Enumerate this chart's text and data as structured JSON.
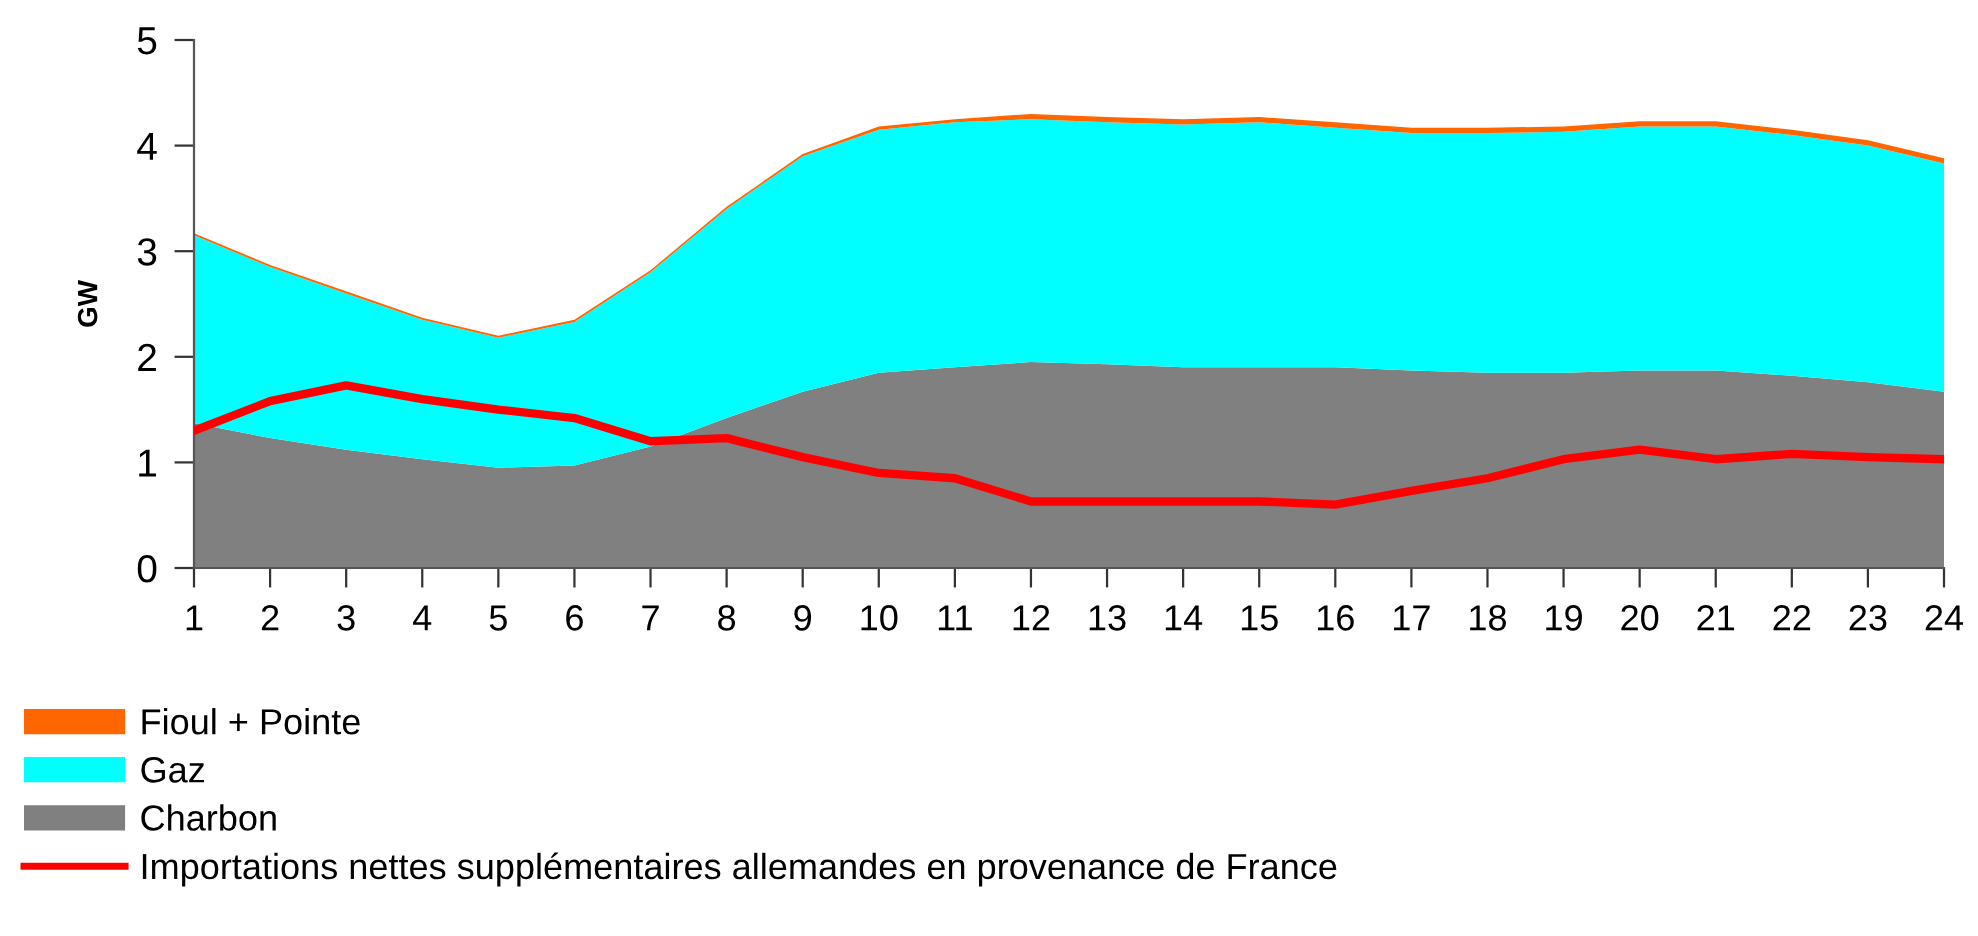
{
  "chart_data": {
    "type": "area",
    "ylabel": "GW",
    "stacked": true,
    "categories": [
      "1",
      "2",
      "3",
      "4",
      "5",
      "6",
      "7",
      "8",
      "9",
      "10",
      "11",
      "12",
      "13",
      "14",
      "15",
      "16",
      "17",
      "18",
      "19",
      "20",
      "21",
      "22",
      "23",
      "24"
    ],
    "series": [
      {
        "name": "Charbon",
        "color": "#808080",
        "values": [
          1.37,
          1.23,
          1.12,
          1.03,
          0.95,
          0.97,
          1.15,
          1.42,
          1.67,
          1.85,
          1.9,
          1.95,
          1.93,
          1.9,
          1.9,
          1.9,
          1.87,
          1.85,
          1.85,
          1.87,
          1.87,
          1.82,
          1.76,
          1.67
        ]
      },
      {
        "name": "Gaz",
        "color": "#00ffff",
        "values": [
          1.78,
          1.62,
          1.48,
          1.32,
          1.23,
          1.36,
          1.65,
          1.98,
          2.23,
          2.3,
          2.32,
          2.3,
          2.29,
          2.3,
          2.32,
          2.27,
          2.25,
          2.27,
          2.28,
          2.31,
          2.31,
          2.28,
          2.24,
          2.16
        ]
      },
      {
        "name": "Fioul + Pointe",
        "color": "#ff6600",
        "values": [
          0.02,
          0.02,
          0.02,
          0.02,
          0.02,
          0.02,
          0.02,
          0.02,
          0.02,
          0.03,
          0.03,
          0.05,
          0.05,
          0.05,
          0.05,
          0.05,
          0.05,
          0.05,
          0.05,
          0.05,
          0.05,
          0.05,
          0.05,
          0.05
        ]
      },
      {
        "name": "Importations nettes supplémentaires allemandes en provenance de France",
        "type": "line",
        "color": "#ff0000",
        "values": [
          1.3,
          1.58,
          1.73,
          1.6,
          1.5,
          1.42,
          1.2,
          1.23,
          1.05,
          0.9,
          0.85,
          0.63,
          0.63,
          0.63,
          0.63,
          0.6,
          0.73,
          0.85,
          1.03,
          1.12,
          1.03,
          1.08,
          1.05,
          1.03
        ]
      }
    ],
    "ylim": [
      0,
      5
    ],
    "yticks": [
      0,
      1,
      2,
      3,
      4,
      5
    ],
    "grid": false,
    "legend": "bottom"
  }
}
